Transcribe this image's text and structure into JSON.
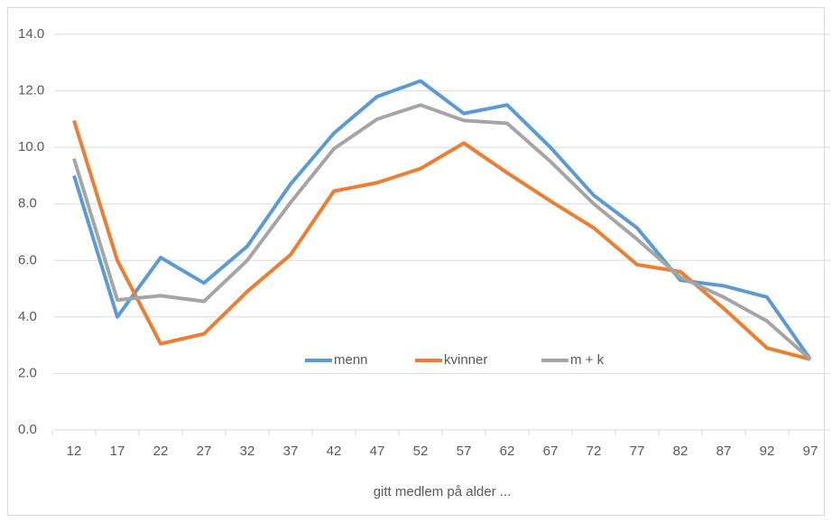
{
  "chart_data": {
    "type": "line",
    "x_label": "gitt medlem på alder ...",
    "categories": [
      "12",
      "17",
      "22",
      "27",
      "32",
      "37",
      "42",
      "47",
      "52",
      "57",
      "62",
      "67",
      "72",
      "77",
      "82",
      "87",
      "92",
      "97"
    ],
    "series": [
      {
        "name": "menn",
        "color": "#5b9bd5",
        "values": [
          9.0,
          4.0,
          6.1,
          5.2,
          6.5,
          8.7,
          10.5,
          11.8,
          12.35,
          11.2,
          11.5,
          10.0,
          8.3,
          7.15,
          5.3,
          5.1,
          4.7,
          2.5
        ]
      },
      {
        "name": "kvinner",
        "color": "#ed7d31",
        "values": [
          10.95,
          6.0,
          3.05,
          3.4,
          4.9,
          6.2,
          8.45,
          8.75,
          9.25,
          10.15,
          9.1,
          8.1,
          7.15,
          5.85,
          5.6,
          4.3,
          2.9,
          2.5
        ]
      },
      {
        "name": "m + k",
        "color": "#a5a5a5",
        "values": [
          9.6,
          4.6,
          4.75,
          4.55,
          6.0,
          8.05,
          9.95,
          11.0,
          11.5,
          10.95,
          10.85,
          9.5,
          8.0,
          6.75,
          5.4,
          4.7,
          3.85,
          2.5
        ]
      }
    ],
    "ylim": [
      0,
      14
    ],
    "yticks": [
      {
        "value": 0,
        "label": "0.0"
      },
      {
        "value": 2,
        "label": "2.0"
      },
      {
        "value": 4,
        "label": "4.0"
      },
      {
        "value": 6,
        "label": "6.0"
      },
      {
        "value": 8,
        "label": "8.0"
      },
      {
        "value": 10,
        "label": "10.0"
      },
      {
        "value": 12,
        "label": "12.0"
      },
      {
        "value": 14,
        "label": "14.0"
      }
    ],
    "grid": true
  }
}
